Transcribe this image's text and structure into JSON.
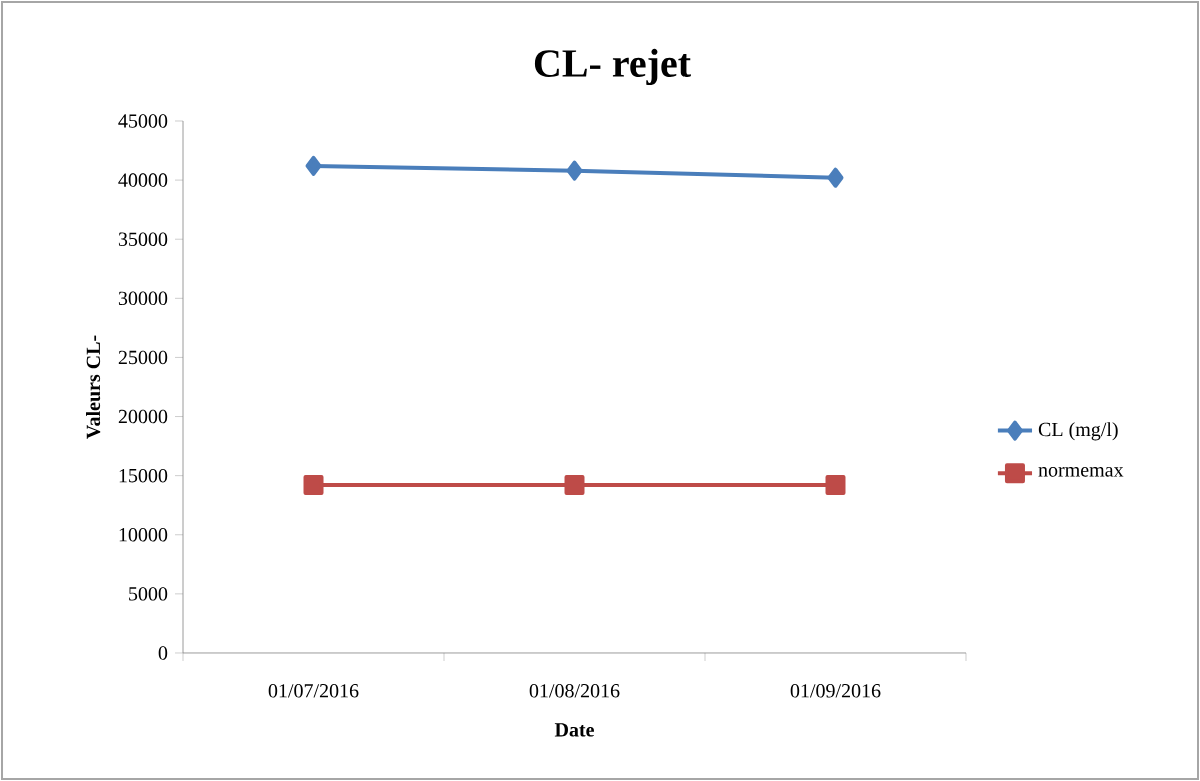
{
  "chart_data": {
    "type": "line",
    "title": "CL-  rejet",
    "xlabel": "Date",
    "ylabel": "Valeurs CL-",
    "categories": [
      "01/07/2016",
      "01/08/2016",
      "01/09/2016"
    ],
    "series": [
      {
        "name": "CL (mg/l)",
        "color": "#4a7ebb",
        "marker": "diamond",
        "values": [
          41200,
          40800,
          40200
        ]
      },
      {
        "name": "normemax",
        "color": "#be4b48",
        "marker": "square",
        "values": [
          14200,
          14200,
          14200
        ]
      }
    ],
    "ylim": [
      0,
      45000
    ],
    "yticks": [
      0,
      5000,
      10000,
      15000,
      20000,
      25000,
      30000,
      35000,
      40000,
      45000
    ],
    "grid": false,
    "legend": "right",
    "line_style": "solid"
  }
}
